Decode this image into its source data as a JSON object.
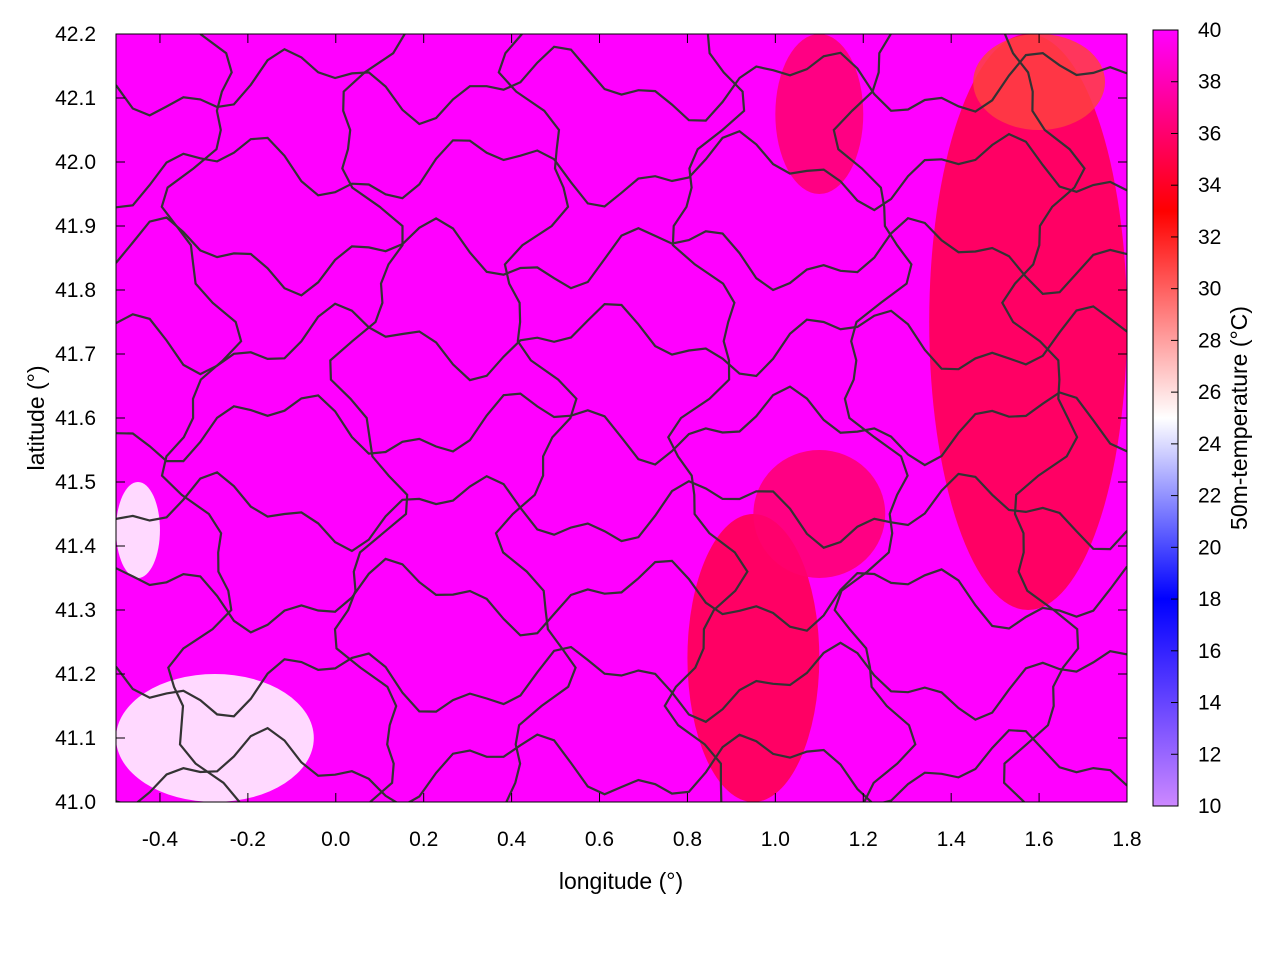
{
  "chart_data": {
    "type": "heatmap",
    "title": "",
    "xlabel": "longitude (°)",
    "ylabel": "latitude (°)",
    "colorbar_label": "50m-temperature (°C)",
    "xlim": [
      -0.5,
      1.8
    ],
    "ylim": [
      41.0,
      42.2
    ],
    "x_ticks": [
      "-0.4",
      "-0.2",
      "0.0",
      "0.2",
      "0.4",
      "0.6",
      "0.8",
      "1.0",
      "1.2",
      "1.4",
      "1.6",
      "1.8"
    ],
    "x_tick_values": [
      -0.4,
      -0.2,
      0.0,
      0.2,
      0.4,
      0.6,
      0.8,
      1.0,
      1.2,
      1.4,
      1.6,
      1.8
    ],
    "y_ticks": [
      "41.0",
      "41.1",
      "41.2",
      "41.3",
      "41.4",
      "41.5",
      "41.6",
      "41.7",
      "41.8",
      "41.9",
      "42.0",
      "42.1",
      "42.2"
    ],
    "y_tick_values": [
      41.0,
      41.1,
      41.2,
      41.3,
      41.4,
      41.5,
      41.6,
      41.7,
      41.8,
      41.9,
      42.0,
      42.1,
      42.2
    ],
    "colorbar_ticks": [
      "10",
      "12",
      "14",
      "16",
      "18",
      "20",
      "22",
      "24",
      "26",
      "28",
      "30",
      "32",
      "34",
      "36",
      "38",
      "40"
    ],
    "colorbar_tick_values": [
      10,
      12,
      14,
      16,
      18,
      20,
      22,
      24,
      26,
      28,
      30,
      32,
      34,
      36,
      38,
      40
    ],
    "colorbar_range": [
      10,
      40
    ],
    "colormap": [
      {
        "value": 10,
        "color": "#cc88ff"
      },
      {
        "value": 18,
        "color": "#0000ff"
      },
      {
        "value": 25,
        "color": "#ffffff"
      },
      {
        "value": 33,
        "color": "#ff0000"
      },
      {
        "value": 40,
        "color": "#ff00ff"
      }
    ],
    "background_value": 40,
    "regions": [
      {
        "x": [
          1.35,
          1.8
        ],
        "y": [
          41.3,
          42.2
        ],
        "value": 35
      },
      {
        "x": [
          1.45,
          1.75
        ],
        "y": [
          42.05,
          42.2
        ],
        "value": 31
      },
      {
        "x": [
          0.8,
          1.1
        ],
        "y": [
          41.0,
          41.45
        ],
        "value": 35
      },
      {
        "x": [
          0.95,
          1.25
        ],
        "y": [
          41.35,
          41.55
        ],
        "value": 36
      },
      {
        "x": [
          1.0,
          1.2
        ],
        "y": [
          41.95,
          42.2
        ],
        "value": 36
      },
      {
        "x": [
          -0.5,
          -0.05
        ],
        "y": [
          41.0,
          41.2
        ],
        "value": 25
      },
      {
        "x": [
          -0.5,
          -0.4
        ],
        "y": [
          41.35,
          41.5
        ],
        "value": 25
      }
    ],
    "contour_color": "#333333",
    "grid": false,
    "legend": "none"
  }
}
